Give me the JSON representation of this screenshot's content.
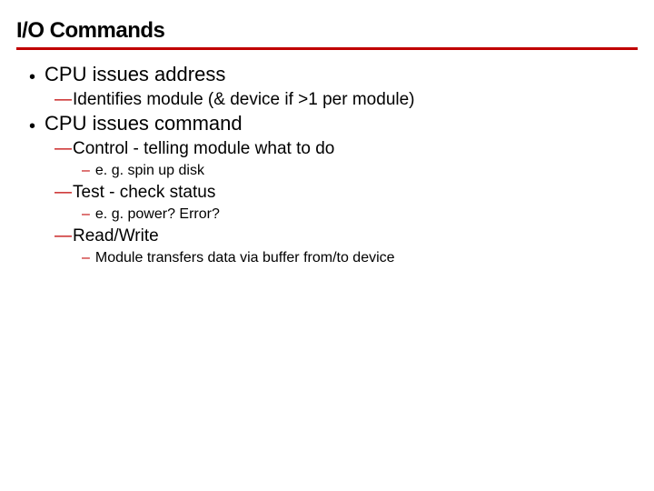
{
  "styling": {
    "title_color": "#000000",
    "title_fontsize": 24,
    "underline_color": "#c00000",
    "l1_fontsize": 22,
    "l1_color": "#000000",
    "l2_dash_color": "#c00000",
    "l2_fontsize": 19,
    "l2_color": "#000000",
    "l3_tick_color": "#c00000",
    "l3_fontsize": 16,
    "l3_color": "#000000",
    "background_color": "#ffffff"
  },
  "title": "I/O Commands",
  "items": {
    "i1": {
      "text": "CPU issues address"
    },
    "i1_1": {
      "text": "Identifies module (& device if >1 per module)"
    },
    "i2": {
      "text": "CPU issues command"
    },
    "i2_1": {
      "text": "Control - telling module what to do"
    },
    "i2_1_1": {
      "text": "e. g. spin up disk"
    },
    "i2_2": {
      "text": "Test - check status"
    },
    "i2_2_1": {
      "text": "e. g. power? Error?"
    },
    "i2_3": {
      "text": "Read/Write"
    },
    "i2_3_1": {
      "text": "Module transfers data via buffer from/to device"
    }
  }
}
